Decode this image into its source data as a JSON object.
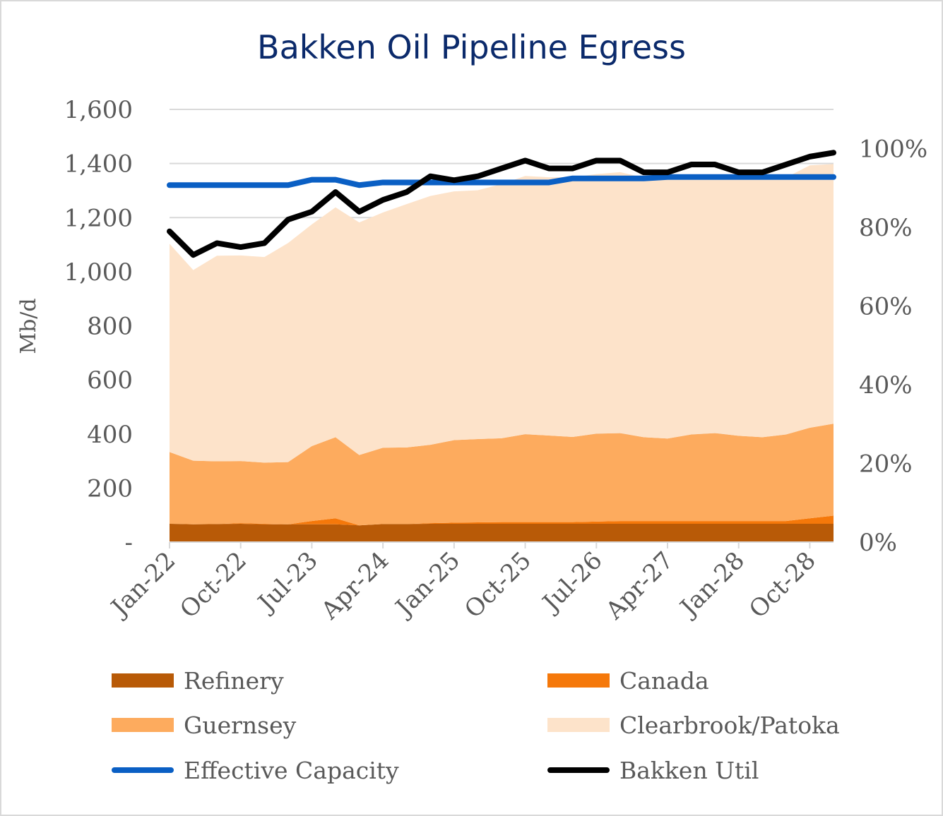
{
  "title": "Bakken Oil Pipeline Egress",
  "colors": {
    "refinery": "#b85a07",
    "canada": "#f5780a",
    "guernsey": "#fdab5e",
    "clearbrook": "#fde3ca",
    "capacity": "#0a5fc4",
    "util": "#000000",
    "title": "#0b2a6b"
  },
  "chart_data": {
    "type": "area",
    "title": "Bakken Oil Pipeline Egress",
    "ylabel": "Mb/d",
    "ylim": [
      0,
      1600
    ],
    "y2lim": [
      0,
      1.1
    ],
    "yticks": [
      "-",
      "200",
      "400",
      "600",
      "800",
      "1,000",
      "1,200",
      "1,400",
      "1,600"
    ],
    "y2ticks": [
      "0%",
      "20%",
      "40%",
      "60%",
      "80%",
      "100%"
    ],
    "grid": true,
    "legend_position": "bottom",
    "x_start": "Jan-22",
    "x_frequency": "quarterly",
    "categories": [
      "Jan-22",
      "Apr-22",
      "Jul-22",
      "Oct-22",
      "Jan-23",
      "Apr-23",
      "Jul-23",
      "Oct-23",
      "Jan-24",
      "Apr-24",
      "Jul-24",
      "Oct-24",
      "Jan-25",
      "Apr-25",
      "Jul-25",
      "Oct-25",
      "Jan-26",
      "Apr-26",
      "Jul-26",
      "Oct-26",
      "Jan-27",
      "Apr-27",
      "Jul-27",
      "Oct-27",
      "Jan-28",
      "Apr-28",
      "Jul-28",
      "Oct-28",
      "Jan-29"
    ],
    "x_tick_labels": [
      "Jan-22",
      "Oct-22",
      "Jul-23",
      "Apr-24",
      "Jan-25",
      "Oct-25",
      "Jul-26",
      "Apr-27",
      "Jan-28",
      "Oct-28"
    ],
    "series": [
      {
        "name": "Refinery",
        "kind": "area",
        "axis": "left",
        "values": [
          68,
          66,
          67,
          68,
          66,
          66,
          66,
          66,
          62,
          67,
          67,
          68,
          68,
          68,
          68,
          68,
          68,
          68,
          68,
          68,
          68,
          68,
          68,
          68,
          68,
          68,
          68,
          68,
          68
        ]
      },
      {
        "name": "Canada",
        "kind": "area",
        "axis": "left",
        "values": [
          0,
          0,
          0,
          2,
          2,
          0,
          12,
          22,
          0,
          0,
          0,
          2,
          4,
          5,
          6,
          6,
          6,
          6,
          8,
          10,
          10,
          10,
          10,
          10,
          10,
          10,
          10,
          20,
          30
        ]
      },
      {
        "name": "Guernsey",
        "kind": "area",
        "axis": "left",
        "values": [
          265,
          235,
          232,
          230,
          226,
          230,
          277,
          300,
          260,
          282,
          283,
          290,
          305,
          308,
          310,
          325,
          320,
          315,
          325,
          325,
          310,
          305,
          320,
          325,
          315,
          310,
          320,
          335,
          340
        ]
      },
      {
        "name": "Clearbrook/Patoka",
        "kind": "area",
        "axis": "left",
        "values": [
          770,
          705,
          760,
          760,
          760,
          810,
          820,
          850,
          860,
          870,
          900,
          920,
          920,
          920,
          940,
          955,
          955,
          960,
          960,
          965,
          960,
          960,
          950,
          955,
          955,
          955,
          950,
          970,
          960
        ]
      },
      {
        "name": "Effective Capacity",
        "kind": "line",
        "axis": "left",
        "values": [
          1320,
          1320,
          1320,
          1320,
          1320,
          1320,
          1340,
          1340,
          1320,
          1330,
          1330,
          1330,
          1330,
          1330,
          1330,
          1330,
          1330,
          1345,
          1345,
          1345,
          1345,
          1350,
          1350,
          1350,
          1350,
          1350,
          1350,
          1350,
          1350
        ]
      },
      {
        "name": "Bakken Util",
        "kind": "line",
        "axis": "right",
        "values": [
          0.79,
          0.73,
          0.76,
          0.75,
          0.76,
          0.82,
          0.84,
          0.89,
          0.84,
          0.87,
          0.89,
          0.93,
          0.92,
          0.93,
          0.95,
          0.97,
          0.95,
          0.95,
          0.97,
          0.97,
          0.94,
          0.94,
          0.96,
          0.96,
          0.94,
          0.94,
          0.96,
          0.98,
          0.99
        ]
      }
    ]
  },
  "legend": [
    {
      "label": "Refinery",
      "style": "swatch",
      "color": "#b85a07"
    },
    {
      "label": "Canada",
      "style": "swatch",
      "color": "#f5780a"
    },
    {
      "label": "Guernsey",
      "style": "swatch",
      "color": "#fdab5e"
    },
    {
      "label": "Clearbrook/Patoka",
      "style": "swatch",
      "color": "#fde3ca"
    },
    {
      "label": "Effective Capacity",
      "style": "line",
      "color": "#0a5fc4"
    },
    {
      "label": "Bakken Util",
      "style": "line",
      "color": "#000000"
    }
  ]
}
